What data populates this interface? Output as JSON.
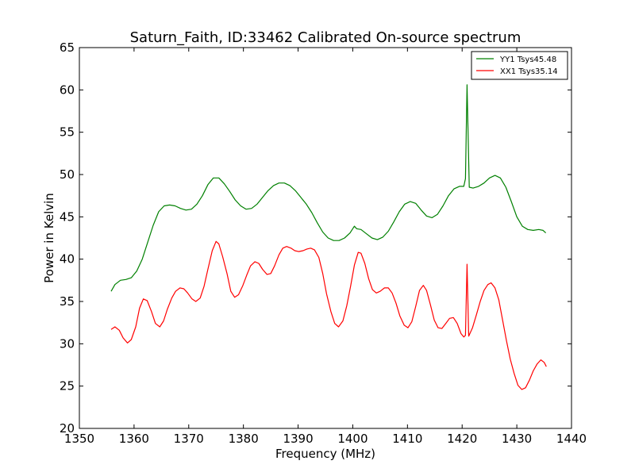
{
  "chart_data": {
    "type": "line",
    "title": "Saturn_Faith, ID:33462 Calibrated On-source spectrum",
    "xlabel": "Frequency (MHz)",
    "ylabel": "Power in Kelvin",
    "xlim": [
      1350,
      1440
    ],
    "ylim": [
      20,
      65
    ],
    "xticks": [
      "1350",
      "1360",
      "1370",
      "1380",
      "1390",
      "1400",
      "1410",
      "1420",
      "1430",
      "1440"
    ],
    "yticks": [
      "20",
      "25",
      "30",
      "35",
      "40",
      "45",
      "50",
      "55",
      "60",
      "65"
    ],
    "grid": false,
    "legend": {
      "placement": "top-right"
    },
    "series": [
      {
        "name": "YY1 Tsys45.48",
        "color": "#008000",
        "points": [
          [
            1355.8,
            36.2
          ],
          [
            1356.5,
            37.0
          ],
          [
            1357.5,
            37.5
          ],
          [
            1358.5,
            37.6
          ],
          [
            1359.5,
            37.8
          ],
          [
            1360.5,
            38.6
          ],
          [
            1361.5,
            40.0
          ],
          [
            1362.5,
            42.0
          ],
          [
            1363.5,
            44.0
          ],
          [
            1364.5,
            45.6
          ],
          [
            1365.5,
            46.3
          ],
          [
            1366.5,
            46.4
          ],
          [
            1367.5,
            46.3
          ],
          [
            1368.5,
            46.0
          ],
          [
            1369.5,
            45.8
          ],
          [
            1370.5,
            45.9
          ],
          [
            1371.5,
            46.5
          ],
          [
            1372.5,
            47.5
          ],
          [
            1373.5,
            48.8
          ],
          [
            1374.5,
            49.6
          ],
          [
            1375.5,
            49.6
          ],
          [
            1376.5,
            48.9
          ],
          [
            1377.5,
            48.0
          ],
          [
            1378.5,
            47.0
          ],
          [
            1379.5,
            46.3
          ],
          [
            1380.5,
            45.9
          ],
          [
            1381.5,
            46.0
          ],
          [
            1382.5,
            46.5
          ],
          [
            1383.5,
            47.3
          ],
          [
            1384.5,
            48.1
          ],
          [
            1385.5,
            48.7
          ],
          [
            1386.5,
            49.0
          ],
          [
            1387.5,
            49.0
          ],
          [
            1388.5,
            48.7
          ],
          [
            1389.5,
            48.1
          ],
          [
            1390.5,
            47.3
          ],
          [
            1391.5,
            46.5
          ],
          [
            1392.5,
            45.5
          ],
          [
            1393.5,
            44.3
          ],
          [
            1394.5,
            43.2
          ],
          [
            1395.5,
            42.5
          ],
          [
            1396.5,
            42.2
          ],
          [
            1397.5,
            42.2
          ],
          [
            1398.5,
            42.5
          ],
          [
            1399.5,
            43.1
          ],
          [
            1400.3,
            43.9
          ],
          [
            1400.7,
            43.6
          ],
          [
            1401.5,
            43.5
          ],
          [
            1402.5,
            43.0
          ],
          [
            1403.5,
            42.5
          ],
          [
            1404.5,
            42.3
          ],
          [
            1405.5,
            42.6
          ],
          [
            1406.5,
            43.3
          ],
          [
            1407.5,
            44.4
          ],
          [
            1408.5,
            45.6
          ],
          [
            1409.5,
            46.5
          ],
          [
            1410.5,
            46.8
          ],
          [
            1411.5,
            46.6
          ],
          [
            1412.5,
            45.8
          ],
          [
            1413.5,
            45.1
          ],
          [
            1414.5,
            44.9
          ],
          [
            1415.5,
            45.3
          ],
          [
            1416.5,
            46.3
          ],
          [
            1417.5,
            47.5
          ],
          [
            1418.5,
            48.3
          ],
          [
            1419.5,
            48.6
          ],
          [
            1420.3,
            48.6
          ],
          [
            1420.6,
            49.5
          ],
          [
            1420.9,
            60.6
          ],
          [
            1421.3,
            48.5
          ],
          [
            1422.0,
            48.4
          ],
          [
            1423.0,
            48.6
          ],
          [
            1424.0,
            49.0
          ],
          [
            1425.0,
            49.6
          ],
          [
            1426.0,
            49.9
          ],
          [
            1427.0,
            49.6
          ],
          [
            1428.0,
            48.5
          ],
          [
            1429.0,
            46.8
          ],
          [
            1430.0,
            45.0
          ],
          [
            1431.0,
            43.9
          ],
          [
            1432.0,
            43.5
          ],
          [
            1433.0,
            43.4
          ],
          [
            1434.0,
            43.5
          ],
          [
            1434.8,
            43.4
          ],
          [
            1435.3,
            43.1
          ]
        ]
      },
      {
        "name": "XX1 Tsys35.14",
        "color": "#ff0000",
        "points": [
          [
            1355.8,
            31.7
          ],
          [
            1356.5,
            32.0
          ],
          [
            1357.3,
            31.6
          ],
          [
            1358.0,
            30.7
          ],
          [
            1358.8,
            30.1
          ],
          [
            1359.5,
            30.5
          ],
          [
            1360.3,
            32.0
          ],
          [
            1361.0,
            34.2
          ],
          [
            1361.7,
            35.3
          ],
          [
            1362.4,
            35.1
          ],
          [
            1363.2,
            33.8
          ],
          [
            1363.9,
            32.4
          ],
          [
            1364.7,
            32.0
          ],
          [
            1365.4,
            32.7
          ],
          [
            1366.1,
            34.1
          ],
          [
            1366.9,
            35.4
          ],
          [
            1367.6,
            36.2
          ],
          [
            1368.4,
            36.6
          ],
          [
            1369.1,
            36.5
          ],
          [
            1369.8,
            36.0
          ],
          [
            1370.6,
            35.3
          ],
          [
            1371.3,
            35.0
          ],
          [
            1372.1,
            35.4
          ],
          [
            1372.8,
            36.8
          ],
          [
            1373.5,
            38.8
          ],
          [
            1374.3,
            41.0
          ],
          [
            1375.0,
            42.1
          ],
          [
            1375.5,
            41.8
          ],
          [
            1376.2,
            40.3
          ],
          [
            1377.0,
            38.3
          ],
          [
            1377.7,
            36.2
          ],
          [
            1378.4,
            35.5
          ],
          [
            1379.1,
            35.8
          ],
          [
            1379.9,
            36.9
          ],
          [
            1380.6,
            38.1
          ],
          [
            1381.3,
            39.2
          ],
          [
            1382.1,
            39.7
          ],
          [
            1382.8,
            39.5
          ],
          [
            1383.5,
            38.8
          ],
          [
            1384.3,
            38.2
          ],
          [
            1385.0,
            38.3
          ],
          [
            1385.7,
            39.2
          ],
          [
            1386.5,
            40.5
          ],
          [
            1387.2,
            41.3
          ],
          [
            1387.9,
            41.5
          ],
          [
            1388.7,
            41.3
          ],
          [
            1389.4,
            41.0
          ],
          [
            1390.1,
            40.9
          ],
          [
            1390.9,
            41.0
          ],
          [
            1391.6,
            41.2
          ],
          [
            1392.3,
            41.3
          ],
          [
            1393.0,
            41.1
          ],
          [
            1393.8,
            40.2
          ],
          [
            1394.5,
            38.3
          ],
          [
            1395.2,
            35.9
          ],
          [
            1396.0,
            33.8
          ],
          [
            1396.7,
            32.4
          ],
          [
            1397.4,
            32.0
          ],
          [
            1398.2,
            32.7
          ],
          [
            1398.9,
            34.5
          ],
          [
            1399.6,
            36.8
          ],
          [
            1400.3,
            39.3
          ],
          [
            1401.0,
            40.8
          ],
          [
            1401.5,
            40.7
          ],
          [
            1402.2,
            39.5
          ],
          [
            1402.9,
            37.7
          ],
          [
            1403.6,
            36.4
          ],
          [
            1404.3,
            36.0
          ],
          [
            1405.0,
            36.2
          ],
          [
            1405.8,
            36.6
          ],
          [
            1406.5,
            36.6
          ],
          [
            1407.2,
            36.0
          ],
          [
            1407.9,
            34.8
          ],
          [
            1408.6,
            33.3
          ],
          [
            1409.4,
            32.2
          ],
          [
            1410.1,
            31.9
          ],
          [
            1410.8,
            32.6
          ],
          [
            1411.5,
            34.4
          ],
          [
            1412.2,
            36.3
          ],
          [
            1412.9,
            36.9
          ],
          [
            1413.5,
            36.3
          ],
          [
            1414.2,
            34.6
          ],
          [
            1414.9,
            32.8
          ],
          [
            1415.6,
            31.9
          ],
          [
            1416.3,
            31.8
          ],
          [
            1417.0,
            32.4
          ],
          [
            1417.7,
            33.0
          ],
          [
            1418.4,
            33.1
          ],
          [
            1419.1,
            32.4
          ],
          [
            1419.8,
            31.2
          ],
          [
            1420.3,
            30.8
          ],
          [
            1420.6,
            31.0
          ],
          [
            1420.9,
            39.4
          ],
          [
            1421.2,
            30.9
          ],
          [
            1421.9,
            31.9
          ],
          [
            1422.6,
            33.4
          ],
          [
            1423.3,
            35.0
          ],
          [
            1424.0,
            36.3
          ],
          [
            1424.7,
            37.0
          ],
          [
            1425.3,
            37.2
          ],
          [
            1426.0,
            36.6
          ],
          [
            1426.7,
            35.2
          ],
          [
            1427.4,
            32.8
          ],
          [
            1428.1,
            30.4
          ],
          [
            1428.8,
            28.2
          ],
          [
            1429.5,
            26.5
          ],
          [
            1430.2,
            25.1
          ],
          [
            1430.9,
            24.6
          ],
          [
            1431.6,
            24.8
          ],
          [
            1432.3,
            25.7
          ],
          [
            1433.0,
            26.8
          ],
          [
            1433.7,
            27.6
          ],
          [
            1434.4,
            28.1
          ],
          [
            1435.0,
            27.8
          ],
          [
            1435.4,
            27.3
          ]
        ]
      }
    ]
  }
}
